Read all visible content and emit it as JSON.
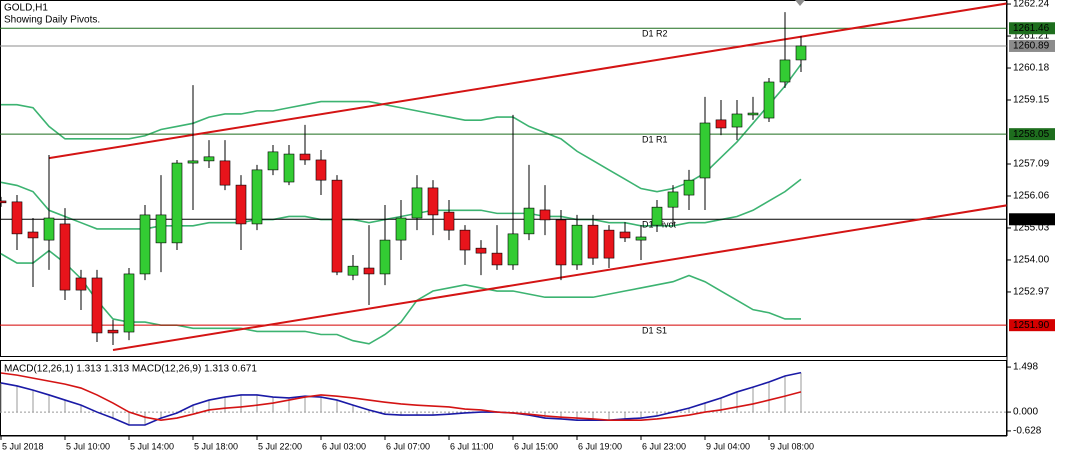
{
  "chart_data": [
    {
      "type": "candlestick",
      "title": "GOLD,H1",
      "subtitle": "Showing Daily Pivots.",
      "categories": [
        "5 Jul 2018",
        null,
        null,
        null,
        "5 Jul 10:00",
        null,
        null,
        null,
        "5 Jul 14:00",
        null,
        null,
        null,
        "5 Jul 18:00",
        null,
        null,
        null,
        "5 Jul 22:00",
        null,
        null,
        null,
        "6 Jul 03:00",
        null,
        null,
        null,
        "6 Jul 07:00",
        null,
        null,
        null,
        "6 Jul 11:00",
        null,
        null,
        null,
        "6 Jul 15:00",
        null,
        null,
        null,
        "6 Jul 19:00",
        null,
        null,
        null,
        "6 Jul 23:00",
        null,
        null,
        null,
        "9 Jul 04:00",
        null,
        null,
        null,
        "9 Jul 08:00",
        null,
        null
      ],
      "open": [
        1255.9,
        1255.87,
        1254.9,
        1254.64,
        1255.16,
        1253.42,
        1253.42,
        1251.74,
        1251.68,
        1253.55,
        1254.55,
        1254.55,
        1257.12,
        1257.19,
        1257.19,
        1256.41,
        1255.16,
        1256.9,
        1256.51,
        1257.41,
        1257.22,
        1256.57,
        1253.51,
        1253.74,
        1253.55,
        1254.64,
        1255.35,
        1256.32,
        1255.54,
        1254.96,
        1254.38,
        1254.22,
        1253.84,
        1254.84,
        1255.61,
        1255.29,
        1253.84,
        1255.12,
        1254.96,
        1254.9,
        1254.64,
        1255.12,
        1255.7,
        1256.09,
        1256.64,
        1258.51,
        1258.28,
        1258.67,
        1258.57,
        1259.73,
        1260.44
      ],
      "high": [
        1256.03,
        1256.09,
        1255.35,
        1257.38,
        1255.67,
        1253.68,
        1253.68,
        1252.07,
        1253.74,
        1255.77,
        1256.73,
        1257.22,
        1259.63,
        1257.86,
        1257.86,
        1256.73,
        1257.06,
        1257.7,
        1257.7,
        1258.35,
        1257.54,
        1256.73,
        1254.16,
        1255.12,
        1255.77,
        1255.93,
        1256.73,
        1256.57,
        1255.93,
        1255.12,
        1254.64,
        1255.12,
        1258.67,
        1257.06,
        1256.41,
        1255.61,
        1255.45,
        1255.45,
        1255.12,
        1255.22,
        1255.12,
        1255.93,
        1256.41,
        1256.9,
        1259.25,
        1259.15,
        1259.15,
        1259.25,
        1259.86,
        1261.98,
        1261.21
      ],
      "low": [
        1255.71,
        1254.32,
        1253.13,
        1253.68,
        1252.71,
        1252.39,
        1251.36,
        1251.26,
        1251.42,
        1253.35,
        1253.61,
        1254.32,
        1255.61,
        1256.96,
        1256.25,
        1254.32,
        1254.96,
        1256.73,
        1256.41,
        1257.06,
        1256.09,
        1253.51,
        1253.35,
        1252.55,
        1253.19,
        1254.0,
        1254.96,
        1254.8,
        1254.64,
        1253.84,
        1253.51,
        1253.68,
        1253.68,
        1254.64,
        1254.8,
        1253.35,
        1253.68,
        1253.84,
        1253.74,
        1254.58,
        1254.0,
        1254.9,
        1255.12,
        1255.61,
        1255.61,
        1258.02,
        1257.86,
        1258.51,
        1258.44,
        1259.54,
        1260.05
      ],
      "close": [
        1255.84,
        1254.84,
        1254.71,
        1255.35,
        1253.03,
        1253.03,
        1251.65,
        1251.65,
        1253.55,
        1255.45,
        1255.45,
        1257.12,
        1257.19,
        1257.32,
        1256.41,
        1255.16,
        1256.9,
        1257.48,
        1257.41,
        1257.22,
        1256.57,
        1253.61,
        1253.8,
        1253.55,
        1254.64,
        1255.35,
        1256.32,
        1255.45,
        1254.96,
        1254.32,
        1254.22,
        1253.84,
        1254.84,
        1255.67,
        1255.29,
        1253.84,
        1255.12,
        1254.06,
        1254.06,
        1254.71,
        1254.74,
        1255.7,
        1256.19,
        1256.57,
        1258.41,
        1258.25,
        1258.7,
        1258.73,
        1259.73,
        1260.44,
        1260.89
      ],
      "up_color": "#33cc33",
      "down_color": "#e8141b",
      "bands": {
        "color": "#3cb371",
        "upper": [
          1259.0,
          1259.0,
          1258.9,
          1258.3,
          1257.9,
          1257.9,
          1257.9,
          1257.9,
          1257.9,
          1258.0,
          1258.2,
          1258.3,
          1258.4,
          1258.6,
          1258.7,
          1258.7,
          1258.8,
          1258.8,
          1258.9,
          1259.0,
          1259.1,
          1259.1,
          1259.1,
          1259.1,
          1259.0,
          1258.9,
          1258.8,
          1258.7,
          1258.6,
          1258.5,
          1258.5,
          1258.6,
          1258.6,
          1258.3,
          1258.1,
          1257.9,
          1257.5,
          1257.2,
          1256.9,
          1256.6,
          1256.3,
          1256.2,
          1256.3,
          1256.5,
          1256.8,
          1257.3,
          1257.8,
          1258.4,
          1259.0,
          1259.6,
          1260.3
        ],
        "middle": [
          1256.5,
          1256.4,
          1256.2,
          1255.6,
          1255.4,
          1255.2,
          1255.0,
          1255.0,
          1255.0,
          1255.0,
          1255.1,
          1255.1,
          1255.1,
          1255.2,
          1255.2,
          1255.2,
          1255.3,
          1255.3,
          1255.4,
          1255.4,
          1255.3,
          1255.3,
          1255.3,
          1255.2,
          1255.3,
          1255.4,
          1255.5,
          1255.6,
          1255.6,
          1255.6,
          1255.6,
          1255.5,
          1255.5,
          1255.5,
          1255.4,
          1255.4,
          1255.3,
          1255.3,
          1255.2,
          1255.2,
          1255.1,
          1255.1,
          1255.1,
          1255.2,
          1255.2,
          1255.3,
          1255.4,
          1255.6,
          1255.9,
          1256.2,
          1256.6
        ],
        "lower": [
          1254.2,
          1253.9,
          1253.9,
          1254.3,
          1253.9,
          1253.4,
          1252.7,
          1252.1,
          1252.0,
          1252.0,
          1251.9,
          1251.9,
          1251.8,
          1251.8,
          1251.8,
          1251.8,
          1251.7,
          1251.7,
          1251.7,
          1251.7,
          1251.6,
          1251.6,
          1251.4,
          1251.3,
          1251.6,
          1252.0,
          1252.7,
          1253.0,
          1253.1,
          1253.2,
          1253.1,
          1253.0,
          1253.0,
          1252.9,
          1252.8,
          1252.8,
          1252.8,
          1252.8,
          1252.9,
          1253.0,
          1253.1,
          1253.2,
          1253.3,
          1253.5,
          1253.3,
          1253.0,
          1252.7,
          1252.4,
          1252.3,
          1252.1,
          1252.1
        ]
      },
      "levels": [
        {
          "name": "D1 R2",
          "value": 1261.46,
          "color": "#1e6e1e"
        },
        {
          "name": "D1 R1",
          "value": 1258.05,
          "color": "#1e6e1e"
        },
        {
          "name": "D1 Pivot",
          "value": 1255.31,
          "color": "#000000"
        },
        {
          "name": "D1 S1",
          "value": 1251.9,
          "value_label": "1251.90",
          "color": "#d40000"
        }
      ],
      "current_price": 1260.89,
      "current_color": "#8c8c8c",
      "trendlines": [
        {
          "start_index": 3,
          "start_price": 1257.28,
          "end_index": 63,
          "end_price": 1262.27
        },
        {
          "start_index": 7,
          "start_price": 1251.1,
          "end_index": 63,
          "end_price": 1255.77
        }
      ],
      "trend_color": "#d41414",
      "ylim": [
        1250.94,
        1262.37
      ],
      "yticks": [
        1262.24,
        1261.21,
        1260.18,
        1259.15,
        1257.09,
        1256.06,
        1255.03,
        {
          "value": 1254,
          "label": "1254.00"
        },
        1252.97
      ]
    },
    {
      "type": "line",
      "title": "MACD(12,26,1) 1.313 1.313 MACD(12,26,9) 1.313 0.671",
      "main": {
        "color": "#1a1aa6",
        "values": [
          0.97,
          0.87,
          0.73,
          0.57,
          0.4,
          0.23,
          0.0,
          -0.2,
          -0.43,
          -0.43,
          -0.2,
          -0.03,
          0.23,
          0.4,
          0.5,
          0.57,
          0.57,
          0.5,
          0.47,
          0.53,
          0.5,
          0.4,
          0.23,
          0.07,
          -0.07,
          -0.1,
          -0.1,
          -0.1,
          -0.07,
          -0.03,
          0.0,
          0.0,
          -0.03,
          -0.1,
          -0.2,
          -0.23,
          -0.27,
          -0.27,
          -0.27,
          -0.23,
          -0.2,
          -0.13,
          0.0,
          0.13,
          0.3,
          0.47,
          0.67,
          0.83,
          1.0,
          1.2,
          1.313
        ]
      },
      "signal": {
        "color": "#d41414",
        "values": [
          1.3,
          1.23,
          1.13,
          1.03,
          0.93,
          0.8,
          0.57,
          0.3,
          0.0,
          -0.17,
          -0.27,
          -0.2,
          -0.07,
          0.07,
          0.13,
          0.17,
          0.23,
          0.3,
          0.4,
          0.5,
          0.57,
          0.53,
          0.47,
          0.4,
          0.33,
          0.27,
          0.23,
          0.2,
          0.17,
          0.1,
          0.07,
          0.0,
          -0.03,
          -0.07,
          -0.13,
          -0.17,
          -0.2,
          -0.23,
          -0.27,
          -0.27,
          -0.27,
          -0.23,
          -0.17,
          -0.1,
          0.0,
          0.07,
          0.17,
          0.27,
          0.4,
          0.53,
          0.671
        ]
      },
      "histogram_color": "#9a9a9a",
      "zero_line": true,
      "ylim": [
        -0.73,
        1.7
      ],
      "yticks": [
        1.498,
        {
          "value": 0,
          "label": "0.000"
        },
        -0.628
      ]
    }
  ]
}
